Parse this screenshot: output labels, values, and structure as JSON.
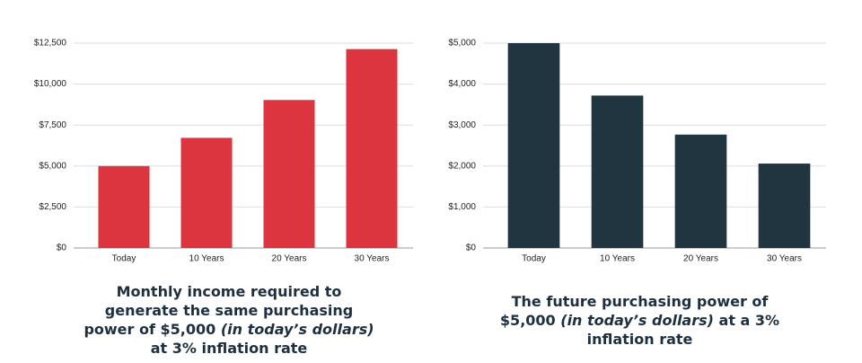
{
  "chart_data": [
    {
      "type": "bar",
      "categories": [
        "Today",
        "10 Years",
        "20 Years",
        "30 Years"
      ],
      "values": [
        5000,
        6720,
        9031,
        12136
      ],
      "color": "#dc3540",
      "ylim": [
        0,
        12500
      ],
      "yticks": [
        {
          "value": 0,
          "label": "$0"
        },
        {
          "value": 2500,
          "label": "$2,500"
        },
        {
          "value": 5000,
          "label": "$5,000"
        },
        {
          "value": 7500,
          "label": "$7,500"
        },
        {
          "value": 10000,
          "label": "$10,000"
        },
        {
          "value": 12500,
          "label": "$12,500"
        }
      ],
      "grid": true,
      "caption": [
        "Monthly income required to generate the same purchasing power of $5,000",
        "(in today’s dollars)",
        "at 3% inflation rate"
      ]
    },
    {
      "type": "bar",
      "categories": [
        "Today",
        "10 Years",
        "20 Years",
        "30 Years"
      ],
      "values": [
        5000,
        3720,
        2768,
        2060
      ],
      "color": "#213541",
      "ylim": [
        0,
        5000
      ],
      "yticks": [
        {
          "value": 0,
          "label": "$0"
        },
        {
          "value": 1000,
          "label": "$1,000"
        },
        {
          "value": 2000,
          "label": "$2,000"
        },
        {
          "value": 3000,
          "label": "$3,000"
        },
        {
          "value": 4000,
          "label": "$4,000"
        },
        {
          "value": 5000,
          "label": "$5,000"
        }
      ],
      "grid": true,
      "caption": [
        "The future purchasing power of $5,000",
        "(in today’s dollars)",
        "at a 3% inflation rate"
      ]
    }
  ]
}
